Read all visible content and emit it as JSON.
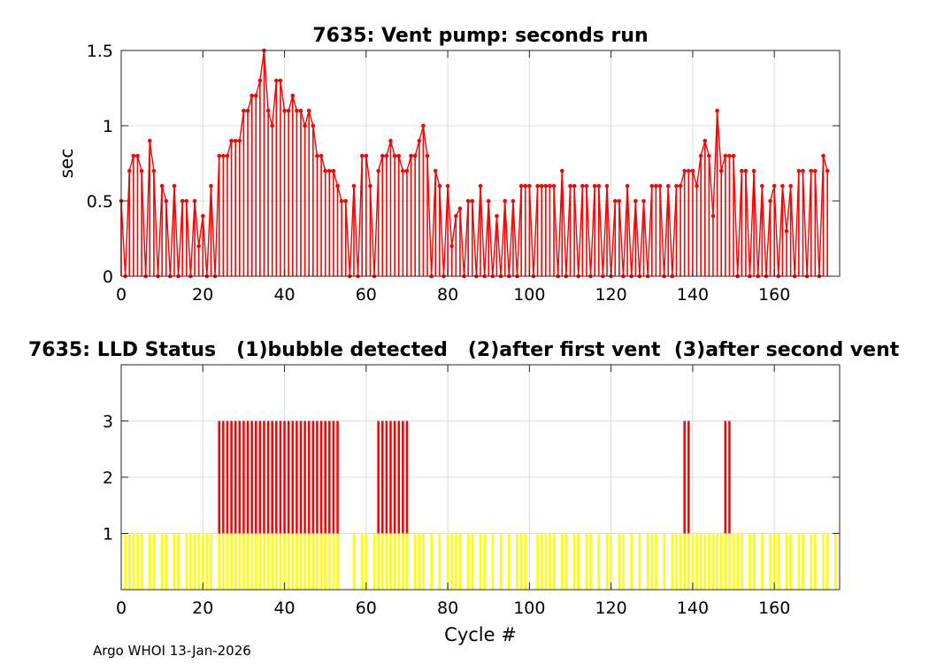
{
  "footer": "Argo WHOI 13-Jan-2026",
  "colors": {
    "stem": "#ff0000",
    "status_low": "#ffff00",
    "status_high": "#ff0000",
    "grid": "#dcdcdc"
  },
  "chart_data": [
    {
      "type": "bar",
      "style": "stem",
      "title": "7635: Vent pump: seconds run",
      "xlabel": "",
      "ylabel": "sec",
      "xlim": [
        0,
        176
      ],
      "ylim": [
        0,
        1.5
      ],
      "xticks": [
        0,
        20,
        40,
        60,
        80,
        100,
        120,
        140,
        160
      ],
      "yticks": [
        0,
        0.5,
        1,
        1.5
      ],
      "grid": true,
      "x_start": 0,
      "values": [
        0.5,
        0,
        0.7,
        0.8,
        0.8,
        0.7,
        0,
        0.9,
        0.7,
        0,
        0.6,
        0.5,
        0,
        0.6,
        0,
        0.5,
        0.5,
        0,
        0.5,
        0.2,
        0.4,
        0,
        0.6,
        0,
        0.8,
        0.8,
        0.8,
        0.9,
        0.9,
        0.9,
        1.1,
        1.1,
        1.2,
        1.2,
        1.3,
        1.5,
        1.1,
        1.0,
        1.3,
        1.3,
        1.1,
        1.1,
        1.2,
        1.1,
        1.1,
        1.0,
        1.1,
        1.0,
        0.8,
        0.8,
        0.7,
        0.7,
        0.7,
        0.6,
        0.5,
        0.5,
        0,
        0.6,
        0,
        0.8,
        0.8,
        0.6,
        0,
        0.7,
        0.8,
        0.8,
        0.9,
        0.8,
        0.8,
        0.7,
        0.7,
        0.8,
        0.8,
        0.9,
        1.0,
        0.8,
        0,
        0.7,
        0.6,
        0,
        0.6,
        0.2,
        0.4,
        0.45,
        0,
        0.5,
        0.5,
        0,
        0.6,
        0,
        0.5,
        0,
        0.4,
        0,
        0.5,
        0,
        0.5,
        0,
        0.6,
        0.6,
        0.6,
        0,
        0.6,
        0.6,
        0.6,
        0.6,
        0.6,
        0,
        0.7,
        0,
        0.6,
        0.6,
        0,
        0.6,
        0.6,
        0,
        0.6,
        0.6,
        0,
        0.6,
        0,
        0.5,
        0.5,
        0,
        0.6,
        0,
        0.5,
        0,
        0.5,
        0,
        0.6,
        0.6,
        0.6,
        0,
        0.6,
        0,
        0.6,
        0.6,
        0.7,
        0.7,
        0.7,
        0.6,
        0.8,
        0.9,
        0.8,
        0.4,
        1.1,
        0.7,
        0.8,
        0.8,
        0.8,
        0,
        0.7,
        0.7,
        0,
        0.7,
        0,
        0.6,
        0,
        0.5,
        0.6,
        0,
        0.6,
        0.3,
        0.6,
        0,
        0.7,
        0.7,
        0,
        0.7,
        0.7,
        0,
        0.8,
        0.7
      ]
    },
    {
      "type": "bar",
      "style": "thin-bars",
      "title": "7635: LLD Status   (1)bubble detected   (2)after first vent  (3)after second vent",
      "xlabel": "Cycle #",
      "ylabel": "",
      "xlim": [
        0,
        176
      ],
      "ylim": [
        0,
        4
      ],
      "xticks": [
        0,
        20,
        40,
        60,
        80,
        100,
        120,
        140,
        160
      ],
      "yticks": [
        1,
        2,
        3
      ],
      "grid": true,
      "x_start": 1,
      "status1_cycles": [
        1,
        2,
        3,
        4,
        5,
        7,
        8,
        10,
        11,
        13,
        14,
        16,
        17,
        18,
        19,
        20,
        21,
        22,
        24,
        25,
        26,
        27,
        28,
        29,
        30,
        31,
        32,
        33,
        34,
        35,
        36,
        37,
        38,
        39,
        40,
        41,
        42,
        43,
        44,
        45,
        46,
        47,
        48,
        49,
        50,
        51,
        52,
        53,
        57,
        59,
        60,
        62,
        63,
        64,
        65,
        66,
        67,
        68,
        69,
        70,
        72,
        73,
        74,
        76,
        78,
        80,
        81,
        82,
        83,
        85,
        86,
        88,
        89,
        91,
        93,
        95,
        97,
        98,
        99,
        102,
        103,
        104,
        105,
        106,
        108,
        109,
        111,
        112,
        114,
        115,
        117,
        119,
        120,
        122,
        123,
        125,
        127,
        129,
        130,
        131,
        133,
        135,
        136,
        137,
        138,
        139,
        140,
        141,
        142,
        143,
        144,
        145,
        146,
        147,
        148,
        149,
        150,
        151,
        152,
        154,
        155,
        157,
        159,
        160,
        161,
        163,
        164,
        166,
        167,
        169,
        170,
        172,
        173,
        175
      ],
      "status3_cycles": [
        24,
        25,
        26,
        27,
        28,
        29,
        30,
        31,
        32,
        33,
        34,
        35,
        36,
        37,
        38,
        39,
        40,
        41,
        42,
        43,
        44,
        45,
        46,
        47,
        48,
        49,
        50,
        51,
        52,
        53,
        63,
        64,
        65,
        66,
        67,
        68,
        69,
        70,
        138,
        139,
        148,
        149
      ]
    }
  ]
}
